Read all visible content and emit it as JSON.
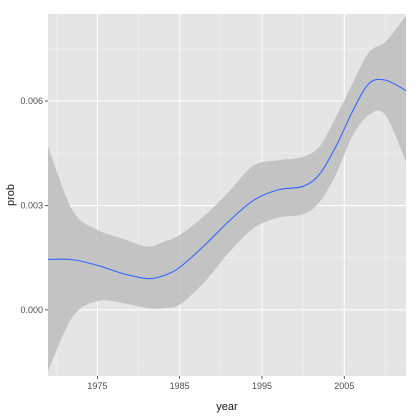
{
  "chart_data": {
    "type": "line",
    "title": "",
    "xlabel": "year",
    "ylabel": "prob",
    "xlim": [
      1969,
      2012.5
    ],
    "ylim": [
      -0.0019,
      0.0085
    ],
    "x_ticks": [
      1975,
      1985,
      1995,
      2005
    ],
    "x_tick_labels": [
      "1975",
      "1985",
      "1995",
      "2005"
    ],
    "y_ticks": [
      0.0,
      0.003,
      0.006
    ],
    "y_tick_labels": [
      "0.000",
      "0.003",
      "0.006"
    ],
    "grid": true,
    "colors": {
      "panel": "#e5e5e5",
      "grid_major": "#ffffff",
      "ribbon": "#bdbdbd",
      "line": "#3366ff"
    },
    "series": [
      {
        "x": [
          1969,
          1972,
          1975,
          1978,
          1981,
          1983,
          1985,
          1988,
          1991,
          1994,
          1997,
          2000,
          2002,
          2004,
          2006,
          2008,
          2010,
          2012.5
        ],
        "y": [
          0.00145,
          0.00144,
          0.00128,
          0.00105,
          0.0009,
          0.00098,
          0.00122,
          0.00185,
          0.00255,
          0.00315,
          0.00345,
          0.00355,
          0.0039,
          0.0047,
          0.0057,
          0.0065,
          0.0066,
          0.0063
        ],
        "ymin": [
          -0.00175,
          -0.0002,
          0.00025,
          0.0002,
          5e-05,
          5e-05,
          0.00015,
          0.0008,
          0.00165,
          0.00235,
          0.00265,
          0.00275,
          0.0031,
          0.0039,
          0.005,
          0.0056,
          0.0056,
          0.00425
        ],
        "ymax": [
          0.0047,
          0.00285,
          0.0023,
          0.00205,
          0.00182,
          0.00195,
          0.00215,
          0.0027,
          0.0034,
          0.00415,
          0.0043,
          0.0044,
          0.0047,
          0.00555,
          0.0065,
          0.0074,
          0.0077,
          0.00845
        ]
      }
    ]
  }
}
